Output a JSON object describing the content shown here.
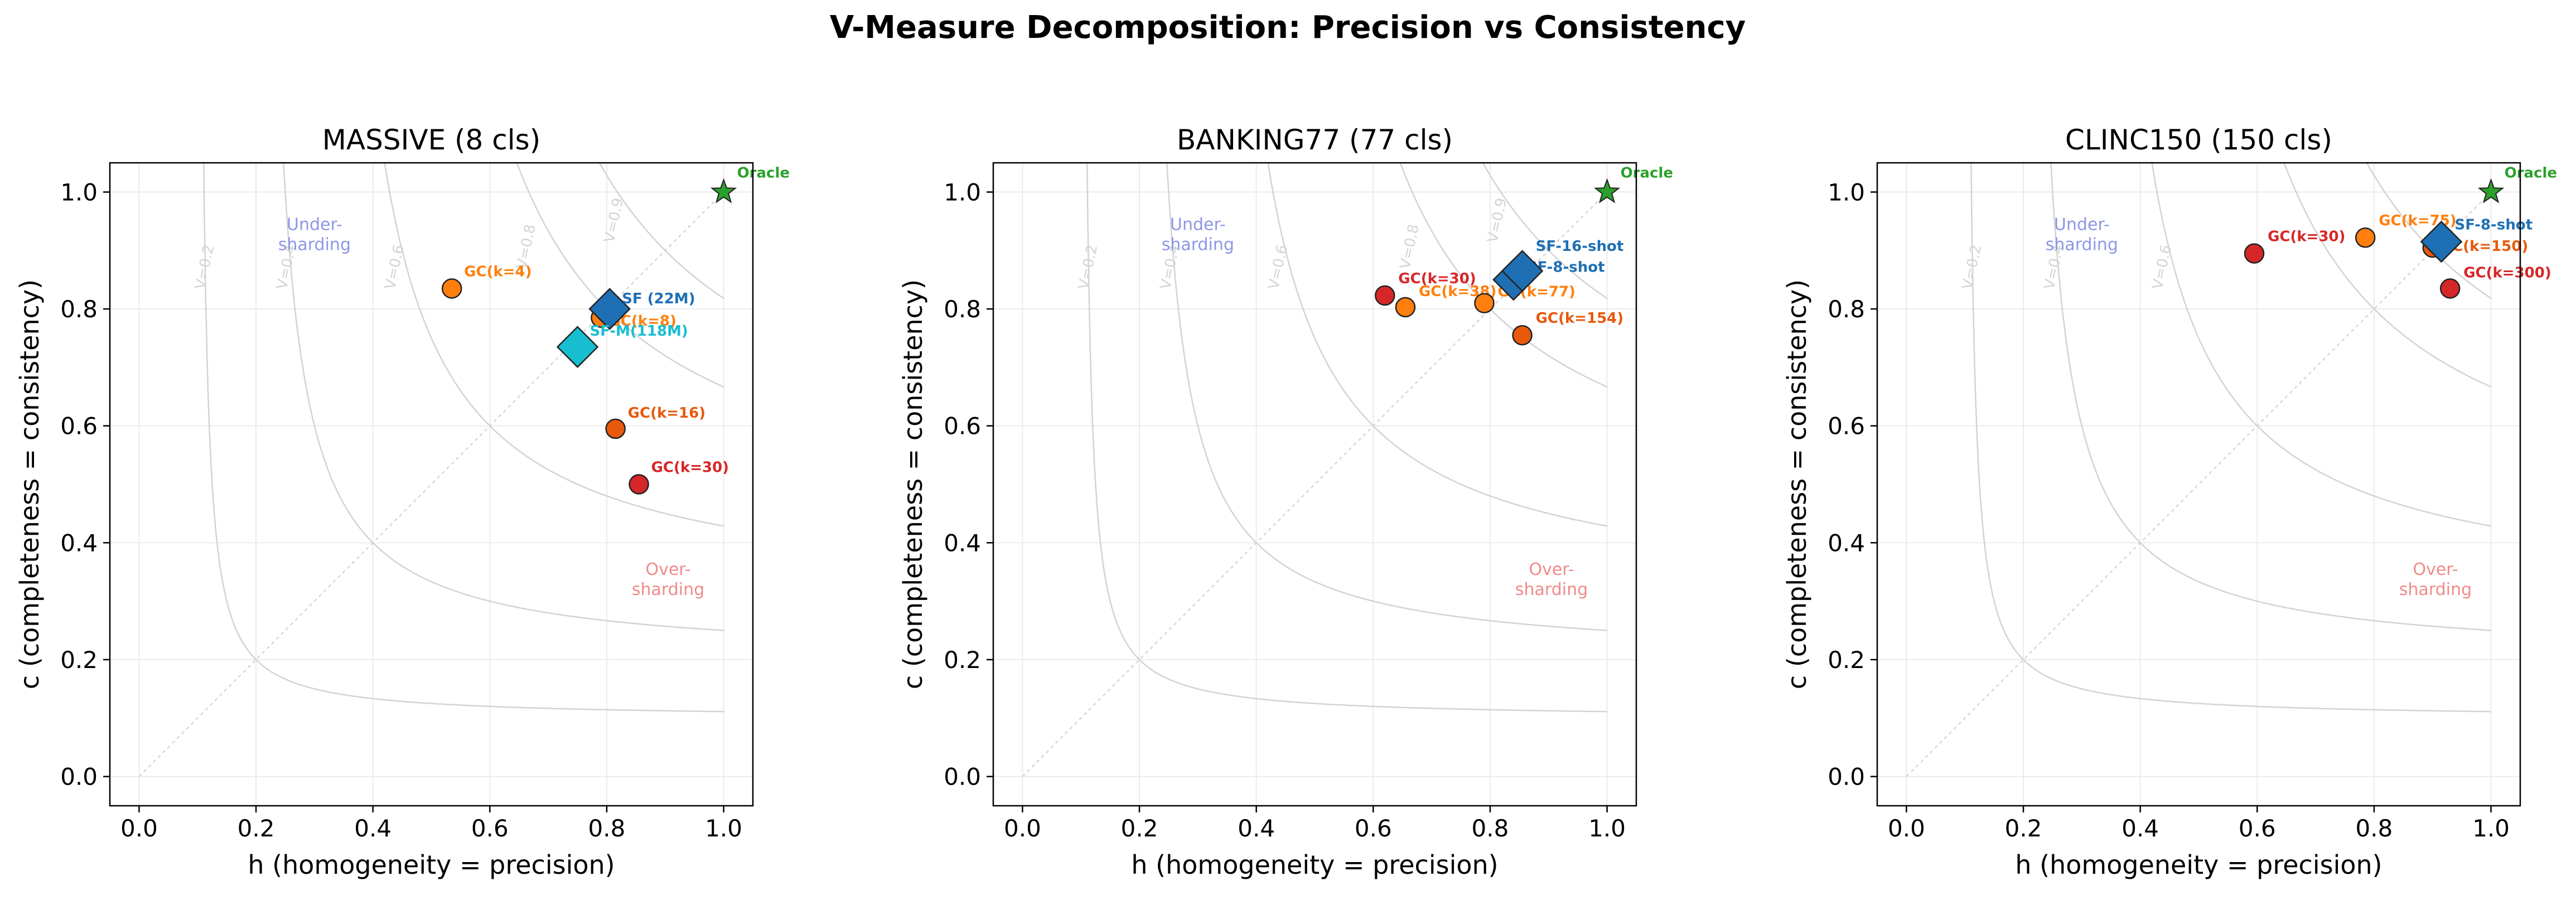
{
  "title": "V-Measure Decomposition: Precision vs Consistency",
  "colors": {
    "oracle": "#2ca02c",
    "gc_orange_light": "#ff7f0e",
    "gc_orange_dark": "#e8590c",
    "gc_red": "#d62728",
    "sf_blue": "#1f6fb4",
    "sf_cyan": "#17becf",
    "under_text": "#8e96e6",
    "over_text": "#f08a8a",
    "contour": "#d3d3d3"
  },
  "chart_data": [
    {
      "type": "scatter",
      "title": "MASSIVE (8 cls)",
      "xlabel": "h (homogeneity = precision)",
      "ylabel": "c (completeness = consistency)",
      "xlim": [
        -0.05,
        1.05
      ],
      "ylim": [
        -0.05,
        1.05
      ],
      "xticks": [
        "0.0",
        "0.2",
        "0.4",
        "0.6",
        "0.8",
        "1.0"
      ],
      "yticks": [
        "0.0",
        "0.2",
        "0.4",
        "0.6",
        "0.8",
        "1.0"
      ],
      "grid": true,
      "contour_labels": [
        "V=0.2",
        "V=0.4",
        "V=0.6",
        "V=0.8",
        "V=0.9"
      ],
      "region_labels": {
        "under": "Under-\nsharding",
        "over": "Over-\nsharding"
      },
      "points": [
        {
          "label": "Oracle",
          "x": 1.0,
          "y": 1.0,
          "marker": "star",
          "color": "#2ca02c",
          "size": "small"
        },
        {
          "label": "GC(k=4)",
          "x": 0.535,
          "y": 0.835,
          "marker": "circle",
          "color": "#ff7f0e"
        },
        {
          "label": "GC(k=8)",
          "x": 0.79,
          "y": 0.785,
          "marker": "circle",
          "color": "#ff7f0e"
        },
        {
          "label": "SF (22M)",
          "x": 0.805,
          "y": 0.8,
          "marker": "diamond",
          "color": "#1f6fb4",
          "size": "medium"
        },
        {
          "label": "SF-M(118M)",
          "x": 0.75,
          "y": 0.735,
          "marker": "diamond",
          "color": "#17becf",
          "size": "medium"
        },
        {
          "label": "GC(k=16)",
          "x": 0.815,
          "y": 0.595,
          "marker": "circle",
          "color": "#e8590c"
        },
        {
          "label": "GC(k=30)",
          "x": 0.855,
          "y": 0.5,
          "marker": "circle",
          "color": "#d62728"
        }
      ]
    },
    {
      "type": "scatter",
      "title": "BANKING77 (77 cls)",
      "xlabel": "h (homogeneity = precision)",
      "ylabel": "c (completeness = consistency)",
      "xlim": [
        -0.05,
        1.05
      ],
      "ylim": [
        -0.05,
        1.05
      ],
      "xticks": [
        "0.0",
        "0.2",
        "0.4",
        "0.6",
        "0.8",
        "1.0"
      ],
      "yticks": [
        "0.0",
        "0.2",
        "0.4",
        "0.6",
        "0.8",
        "1.0"
      ],
      "grid": true,
      "contour_labels": [
        "V=0.2",
        "V=0.4",
        "V=0.6",
        "V=0.8",
        "V=0.9"
      ],
      "region_labels": {
        "under": "Under-\nsharding",
        "over": "Over-\nsharding"
      },
      "points": [
        {
          "label": "Oracle",
          "x": 1.0,
          "y": 1.0,
          "marker": "star",
          "color": "#2ca02c",
          "size": "small"
        },
        {
          "label": "GC(k=30)",
          "x": 0.62,
          "y": 0.823,
          "marker": "circle",
          "color": "#d62728"
        },
        {
          "label": "GC(k=38)",
          "x": 0.655,
          "y": 0.803,
          "marker": "circle",
          "color": "#ff7f0e"
        },
        {
          "label": "GC(k=77)",
          "x": 0.79,
          "y": 0.81,
          "marker": "circle",
          "color": "#ff7f0e"
        },
        {
          "label": "GC(k=154)",
          "x": 0.855,
          "y": 0.755,
          "marker": "circle",
          "color": "#e8590c"
        },
        {
          "label": "SF-8-shot",
          "x": 0.84,
          "y": 0.85,
          "marker": "diamond",
          "color": "#1f6fb4",
          "size": "medium"
        },
        {
          "label": "SF-16-shot",
          "x": 0.855,
          "y": 0.865,
          "marker": "diamond",
          "color": "#1f6fb4",
          "size": "medium"
        }
      ]
    },
    {
      "type": "scatter",
      "title": "CLINC150 (150 cls)",
      "xlabel": "h (homogeneity = precision)",
      "ylabel": "c (completeness = consistency)",
      "xlim": [
        -0.05,
        1.05
      ],
      "ylim": [
        -0.05,
        1.05
      ],
      "xticks": [
        "0.0",
        "0.2",
        "0.4",
        "0.6",
        "0.8",
        "1.0"
      ],
      "yticks": [
        "0.0",
        "0.2",
        "0.4",
        "0.6",
        "0.8",
        "1.0"
      ],
      "grid": true,
      "contour_labels": [
        "V=0.2",
        "V=0.4",
        "V=0.6"
      ],
      "region_labels": {
        "under": "Under-\nsharding",
        "over": "Over-\nsharding"
      },
      "points": [
        {
          "label": "Oracle",
          "x": 1.0,
          "y": 1.0,
          "marker": "star",
          "color": "#2ca02c",
          "size": "small"
        },
        {
          "label": "GC(k=30)",
          "x": 0.595,
          "y": 0.895,
          "marker": "circle",
          "color": "#d62728"
        },
        {
          "label": "GC(k=75)",
          "x": 0.785,
          "y": 0.922,
          "marker": "circle",
          "color": "#ff7f0e"
        },
        {
          "label": "GC(k=150)",
          "x": 0.9,
          "y": 0.905,
          "marker": "circle",
          "color": "#e8590c"
        },
        {
          "label": "SF-8-shot",
          "x": 0.915,
          "y": 0.915,
          "marker": "diamond",
          "color": "#1f6fb4",
          "size": "medium"
        },
        {
          "label": "GC(k=300)",
          "x": 0.93,
          "y": 0.835,
          "marker": "circle",
          "color": "#d62728"
        }
      ]
    }
  ]
}
